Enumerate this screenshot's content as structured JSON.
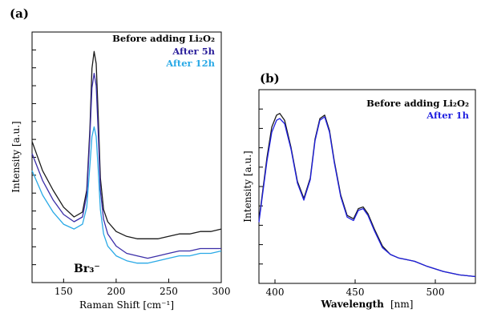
{
  "chart_data": [
    {
      "panel": "(a)",
      "type": "line",
      "xlabel": "Raman Shift [cm⁻¹]",
      "ylabel": "Intensity [a.u.]",
      "xlim": [
        120,
        300
      ],
      "xticks": [
        150,
        200,
        250,
        300
      ],
      "legend": {
        "placement": "top-right",
        "entries": [
          "Before adding Li₂O₂",
          "After 5h",
          "After 12h"
        ]
      },
      "annotation": "Br₃⁻",
      "series": [
        {
          "name": "Before adding Li₂O₂",
          "color": "#1a1a1a",
          "x": [
            120,
            130,
            140,
            150,
            160,
            168,
            172,
            175,
            177,
            179,
            181,
            183,
            185,
            188,
            192,
            200,
            210,
            220,
            230,
            240,
            250,
            260,
            270,
            280,
            290,
            300
          ],
          "y": [
            0.6,
            0.48,
            0.4,
            0.33,
            0.29,
            0.31,
            0.4,
            0.65,
            0.9,
            0.97,
            0.92,
            0.7,
            0.45,
            0.32,
            0.27,
            0.23,
            0.21,
            0.2,
            0.2,
            0.2,
            0.21,
            0.22,
            0.22,
            0.23,
            0.23,
            0.24
          ]
        },
        {
          "name": "After 5h",
          "color": "#3b2ea8",
          "x": [
            120,
            130,
            140,
            150,
            160,
            168,
            172,
            175,
            177,
            179,
            181,
            183,
            185,
            188,
            192,
            200,
            210,
            220,
            230,
            240,
            250,
            260,
            270,
            280,
            290,
            300
          ],
          "y": [
            0.55,
            0.44,
            0.36,
            0.3,
            0.27,
            0.29,
            0.38,
            0.62,
            0.82,
            0.88,
            0.83,
            0.63,
            0.4,
            0.28,
            0.22,
            0.17,
            0.14,
            0.13,
            0.12,
            0.13,
            0.14,
            0.15,
            0.15,
            0.16,
            0.16,
            0.16
          ]
        },
        {
          "name": "After 12h",
          "color": "#29a9e6",
          "x": [
            120,
            130,
            140,
            150,
            160,
            168,
            172,
            175,
            177,
            179,
            181,
            183,
            185,
            188,
            192,
            200,
            210,
            220,
            230,
            240,
            250,
            260,
            270,
            280,
            290,
            300
          ],
          "y": [
            0.48,
            0.38,
            0.31,
            0.26,
            0.24,
            0.26,
            0.33,
            0.5,
            0.62,
            0.66,
            0.62,
            0.48,
            0.32,
            0.22,
            0.17,
            0.13,
            0.11,
            0.1,
            0.1,
            0.11,
            0.12,
            0.13,
            0.13,
            0.14,
            0.14,
            0.15
          ]
        }
      ]
    },
    {
      "panel": "(b)",
      "type": "line",
      "xlabel_bold": "Wavelength",
      "xlabel_unit": "[nm]",
      "ylabel": "Intensity [a.u.]",
      "xlim": [
        390,
        525
      ],
      "xticks": [
        400,
        450,
        500
      ],
      "legend": {
        "placement": "top-right",
        "entries": [
          "Before adding Li₂O₂",
          "After 1h"
        ]
      },
      "series": [
        {
          "name": "Before adding Li₂O₂",
          "color": "#1a1a1a",
          "x": [
            390,
            395,
            398,
            401,
            403,
            406,
            410,
            414,
            418,
            422,
            425,
            428,
            431,
            434,
            437,
            441,
            445,
            449,
            452,
            455,
            458,
            462,
            467,
            472,
            477,
            482,
            487,
            495,
            505,
            515,
            525
          ],
          "y": [
            0.35,
            0.72,
            0.9,
            0.97,
            0.98,
            0.94,
            0.78,
            0.58,
            0.48,
            0.6,
            0.83,
            0.95,
            0.97,
            0.88,
            0.7,
            0.5,
            0.38,
            0.36,
            0.42,
            0.43,
            0.39,
            0.3,
            0.2,
            0.15,
            0.13,
            0.12,
            0.11,
            0.08,
            0.05,
            0.03,
            0.02
          ]
        },
        {
          "name": "After 1h",
          "color": "#1f1fe0",
          "x": [
            390,
            395,
            398,
            401,
            403,
            406,
            410,
            414,
            418,
            422,
            425,
            428,
            431,
            434,
            437,
            441,
            445,
            449,
            452,
            455,
            458,
            462,
            467,
            472,
            477,
            482,
            487,
            495,
            505,
            515,
            525
          ],
          "y": [
            0.34,
            0.7,
            0.87,
            0.94,
            0.95,
            0.92,
            0.77,
            0.57,
            0.47,
            0.59,
            0.82,
            0.94,
            0.96,
            0.87,
            0.69,
            0.49,
            0.37,
            0.35,
            0.41,
            0.42,
            0.38,
            0.29,
            0.19,
            0.15,
            0.13,
            0.12,
            0.11,
            0.08,
            0.05,
            0.03,
            0.02
          ]
        }
      ]
    }
  ]
}
